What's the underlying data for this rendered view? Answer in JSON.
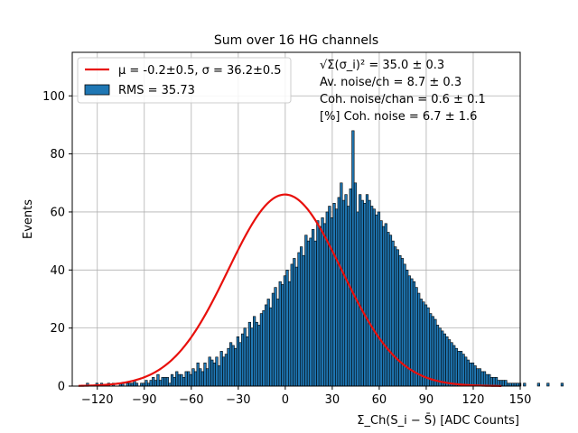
{
  "chart_data": {
    "type": "bar",
    "title": "Sum over 16 HG channels",
    "xlabel": "Σ_Ch(S_i − S̄) [ADC Counts]",
    "ylabel": "Events",
    "xlim": [
      -136,
      150
    ],
    "ylim": [
      0,
      115
    ],
    "xticks": [
      -120,
      -90,
      -60,
      -30,
      0,
      30,
      60,
      90,
      120,
      150
    ],
    "yticks": [
      0,
      20,
      40,
      60,
      80,
      100
    ],
    "grid": true,
    "legend_position": "top-left",
    "bin_width": 1.5,
    "bin_start": -127,
    "histogram_color": "#1f77b4",
    "fit_color": "#e8100c",
    "histogram": {
      "name": "RMS = 35.73",
      "counts": [
        1,
        0,
        0,
        0,
        1,
        0,
        1,
        0,
        0,
        1,
        0,
        1,
        0,
        0,
        1,
        1,
        0,
        1,
        1,
        1,
        2,
        1,
        0,
        1,
        1,
        2,
        1,
        2,
        3,
        2,
        4,
        2,
        3,
        3,
        3,
        1,
        4,
        3,
        5,
        4,
        4,
        3,
        5,
        5,
        4,
        6,
        5,
        8,
        6,
        5,
        8,
        6,
        10,
        9,
        8,
        10,
        7,
        12,
        10,
        11,
        13,
        15,
        14,
        13,
        17,
        15,
        18,
        20,
        17,
        22,
        20,
        24,
        22,
        21,
        25,
        26,
        28,
        30,
        27,
        32,
        34,
        30,
        36,
        35,
        38,
        40,
        36,
        42,
        44,
        41,
        46,
        48,
        45,
        52,
        50,
        51,
        54,
        50,
        57,
        55,
        58,
        56,
        60,
        62,
        58,
        63,
        61,
        65,
        70,
        64,
        66,
        62,
        68,
        88,
        70,
        60,
        66,
        64,
        63,
        66,
        64,
        62,
        61,
        59,
        60,
        57,
        55,
        56,
        53,
        52,
        50,
        48,
        47,
        45,
        44,
        42,
        40,
        38,
        37,
        36,
        34,
        32,
        30,
        29,
        28,
        27,
        25,
        24,
        23,
        21,
        20,
        19,
        18,
        17,
        16,
        15,
        14,
        13,
        12,
        12,
        11,
        10,
        9,
        8,
        8,
        7,
        6,
        6,
        5,
        5,
        4,
        4,
        3,
        3,
        3,
        2,
        2,
        2,
        2,
        1,
        1,
        1,
        1,
        1,
        1,
        0,
        1,
        0,
        0,
        0,
        0,
        0,
        1,
        0,
        0,
        0,
        1,
        0,
        0,
        0,
        0,
        0,
        1
      ]
    },
    "fit": {
      "name": "μ = -0.2±0.5, σ = 36.2±0.5",
      "mu": -0.2,
      "sigma": 36.2,
      "amplitude": 66,
      "x_range": [
        -132,
        138
      ]
    },
    "annotations": [
      "√Σ(σ_i)² = 35.0 ± 0.3",
      "Av. noise/ch  = 8.7 ± 0.3",
      "Coh. noise/chan  = 0.6 ± 0.1",
      "[%] Coh. noise  = 6.7 ± 1.6"
    ]
  }
}
